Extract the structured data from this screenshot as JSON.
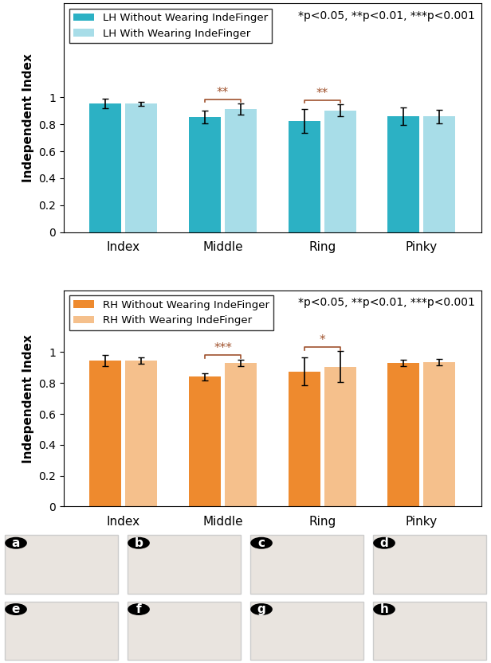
{
  "chart_data": [
    {
      "type": "bar",
      "y_label": "Independent Index",
      "annotation": "*p<0.05, **p<0.01, ***p<0.001",
      "categories": [
        "Index",
        "Middle",
        "Ring",
        "Pinky"
      ],
      "series": [
        {
          "name": "LH Without Wearing IndeFinger",
          "color": "#2cb1c4",
          "values": [
            0.955,
            0.855,
            0.825,
            0.86
          ],
          "errors": [
            0.035,
            0.05,
            0.09,
            0.065
          ]
        },
        {
          "name": "LH With Wearing IndeFinger",
          "color": "#a8dde8",
          "values": [
            0.955,
            0.915,
            0.905,
            0.86
          ],
          "errors": [
            0.015,
            0.04,
            0.045,
            0.05
          ]
        }
      ],
      "significance": [
        {
          "category": "Middle",
          "label": "**"
        },
        {
          "category": "Ring",
          "label": "**"
        }
      ],
      "ylim": [
        0,
        1.7
      ],
      "yticks": [
        0,
        0.2,
        0.4,
        0.6,
        0.8,
        1
      ],
      "grid": false,
      "legend": "upper left"
    },
    {
      "type": "bar",
      "y_label": "Independent Index",
      "annotation": "*p<0.05, **p<0.01, ***p<0.001",
      "categories": [
        "Index",
        "Middle",
        "Ring",
        "Pinky"
      ],
      "series": [
        {
          "name": "RH Without Wearing IndeFinger",
          "color": "#ee8a2e",
          "values": [
            0.945,
            0.84,
            0.875,
            0.93
          ],
          "errors": [
            0.035,
            0.025,
            0.09,
            0.02
          ]
        },
        {
          "name": "RH With Wearing IndeFinger",
          "color": "#f5c08c",
          "values": [
            0.945,
            0.93,
            0.905,
            0.935
          ],
          "errors": [
            0.02,
            0.02,
            0.1,
            0.02
          ]
        }
      ],
      "significance": [
        {
          "category": "Middle",
          "label": "***"
        },
        {
          "category": "Ring",
          "label": "*"
        }
      ],
      "ylim": [
        0,
        1.4
      ],
      "yticks": [
        0,
        0.2,
        0.4,
        0.6,
        0.8,
        1
      ],
      "grid": false,
      "legend": "upper left"
    }
  ],
  "panel_labels": [
    "a",
    "b",
    "c",
    "d",
    "e",
    "f",
    "g",
    "h"
  ]
}
